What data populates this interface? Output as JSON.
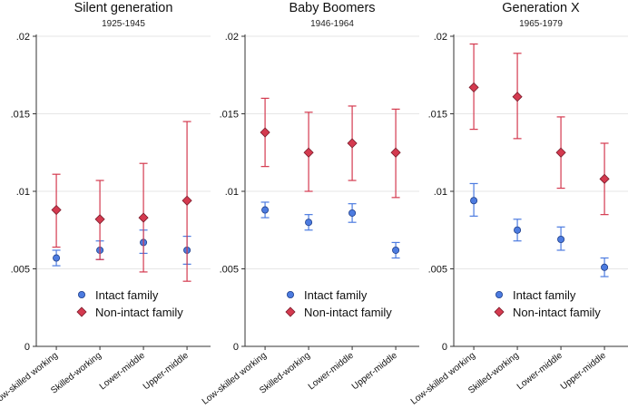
{
  "chart_data": [
    {
      "type": "scatter",
      "title": "Silent generation",
      "subtitle": "1925-1945",
      "categories": [
        "Low-skilled working",
        "Skilled-working",
        "Lower-middle",
        "Upper-middle"
      ],
      "ylim": [
        0,
        0.02
      ],
      "yticks": [
        0,
        0.005,
        0.01,
        0.015,
        0.02
      ],
      "ytick_labels": [
        "0",
        ".005",
        ".01",
        ".015",
        ".02"
      ],
      "grid": true,
      "legend_position": "bottom-center",
      "series": [
        {
          "name": "Intact family",
          "color": "#4c7be0",
          "marker": "circle",
          "values": [
            0.0057,
            0.0062,
            0.0067,
            0.0062
          ],
          "ci_low": [
            0.0052,
            0.0056,
            0.006,
            0.0053
          ],
          "ci_high": [
            0.0062,
            0.0068,
            0.0075,
            0.0071
          ]
        },
        {
          "name": "Non-intact family",
          "color": "#d43a4f",
          "marker": "diamond",
          "values": [
            0.0088,
            0.0082,
            0.0083,
            0.0094
          ],
          "ci_low": [
            0.0064,
            0.0056,
            0.0048,
            0.0042
          ],
          "ci_high": [
            0.0111,
            0.0107,
            0.0118,
            0.0145
          ]
        }
      ]
    },
    {
      "type": "scatter",
      "title": "Baby Boomers",
      "subtitle": "1946-1964",
      "categories": [
        "Low-skilled working",
        "Skilled-working",
        "Lower-middle",
        "Upper-middle"
      ],
      "ylim": [
        0,
        0.02
      ],
      "yticks": [
        0,
        0.005,
        0.01,
        0.015,
        0.02
      ],
      "ytick_labels": [
        "0",
        ".005",
        ".01",
        ".015",
        ".02"
      ],
      "grid": true,
      "legend_position": "bottom-center",
      "series": [
        {
          "name": "Intact family",
          "color": "#4c7be0",
          "marker": "circle",
          "values": [
            0.0088,
            0.008,
            0.0086,
            0.0062
          ],
          "ci_low": [
            0.0083,
            0.0075,
            0.008,
            0.0057
          ],
          "ci_high": [
            0.0093,
            0.0085,
            0.0092,
            0.0067
          ]
        },
        {
          "name": "Non-intact family",
          "color": "#d43a4f",
          "marker": "diamond",
          "values": [
            0.0138,
            0.0125,
            0.0131,
            0.0125
          ],
          "ci_low": [
            0.0116,
            0.01,
            0.0107,
            0.0096
          ],
          "ci_high": [
            0.016,
            0.0151,
            0.0155,
            0.0153
          ]
        }
      ]
    },
    {
      "type": "scatter",
      "title": "Generation X",
      "subtitle": "1965-1979",
      "categories": [
        "Low-skilled working",
        "Skilled-working",
        "Lower-middle",
        "Upper-middle"
      ],
      "ylim": [
        0,
        0.02
      ],
      "yticks": [
        0,
        0.005,
        0.01,
        0.015,
        0.02
      ],
      "ytick_labels": [
        "0",
        ".005",
        ".01",
        ".015",
        ".02"
      ],
      "grid": true,
      "legend_position": "bottom-center",
      "series": [
        {
          "name": "Intact family",
          "color": "#4c7be0",
          "marker": "circle",
          "values": [
            0.0094,
            0.0075,
            0.0069,
            0.0051
          ],
          "ci_low": [
            0.0084,
            0.0068,
            0.0062,
            0.0045
          ],
          "ci_high": [
            0.0105,
            0.0082,
            0.0077,
            0.0057
          ]
        },
        {
          "name": "Non-intact family",
          "color": "#d43a4f",
          "marker": "diamond",
          "values": [
            0.0167,
            0.0161,
            0.0125,
            0.0108
          ],
          "ci_low": [
            0.014,
            0.0134,
            0.0102,
            0.0085
          ],
          "ci_high": [
            0.0195,
            0.0189,
            0.0148,
            0.0131
          ]
        }
      ]
    }
  ]
}
